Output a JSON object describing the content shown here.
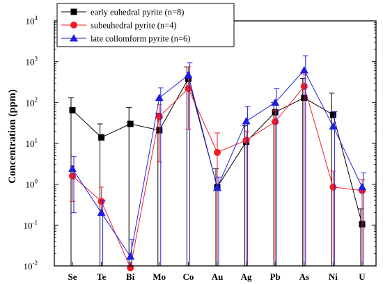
{
  "chart_data": {
    "type": "line",
    "ylabel": "Concentration (ppm)",
    "yscale": "log",
    "ylim": [
      0.01,
      10000
    ],
    "ytick_exponents": [
      "-2",
      "-1",
      "0",
      "1",
      "2",
      "3",
      "4"
    ],
    "ytick_base": "10",
    "categories": [
      "Se",
      "Te",
      "Bi",
      "Mo",
      "Co",
      "Au",
      "Ag",
      "Pb",
      "As",
      "Ni",
      "U"
    ],
    "legend_position": "top-left",
    "grid": false,
    "series": [
      {
        "name": "early euhedral pyrite (n=8)",
        "color": "#000000",
        "marker": "square",
        "values": [
          65,
          14,
          30,
          21,
          380,
          0.85,
          11,
          58,
          130,
          50,
          0.105
        ],
        "err_high": [
          130,
          30,
          75,
          55,
          750,
          2.4,
          27,
          100,
          390,
          170,
          0.25
        ],
        "err_low": [
          0.01,
          0.01,
          0.01,
          0.01,
          0.01,
          0.01,
          0.01,
          0.01,
          0.01,
          0.01,
          0.01
        ]
      },
      {
        "name": "subeuhedral pyrite (n=4)",
        "color": "#ee1c25",
        "marker": "circle",
        "values": [
          1.6,
          0.38,
          0.009,
          45,
          220,
          6,
          12,
          34,
          250,
          0.85,
          0.7
        ],
        "err_high": [
          2.8,
          0.85,
          0.01,
          90,
          750,
          18,
          20,
          65,
          500,
          2.1,
          1.3
        ],
        "err_low": [
          0.38,
          0.2,
          0.009,
          3.5,
          22,
          0.01,
          0.01,
          0.01,
          0.01,
          0.01,
          0.01
        ]
      },
      {
        "name": "late collomform pyrite (n=6)",
        "color": "#1f1fe0",
        "marker": "triangle",
        "values": [
          2.4,
          0.2,
          0.017,
          130,
          470,
          0.82,
          35,
          100,
          620,
          26,
          0.85
        ],
        "err_high": [
          4.8,
          0.4,
          0.044,
          230,
          950,
          1.5,
          80,
          220,
          1400,
          60,
          1.9
        ],
        "err_low": [
          0.2,
          0.01,
          0.01,
          0.01,
          0.01,
          0.01,
          0.01,
          0.01,
          0.01,
          0.01,
          0.01
        ]
      }
    ]
  }
}
